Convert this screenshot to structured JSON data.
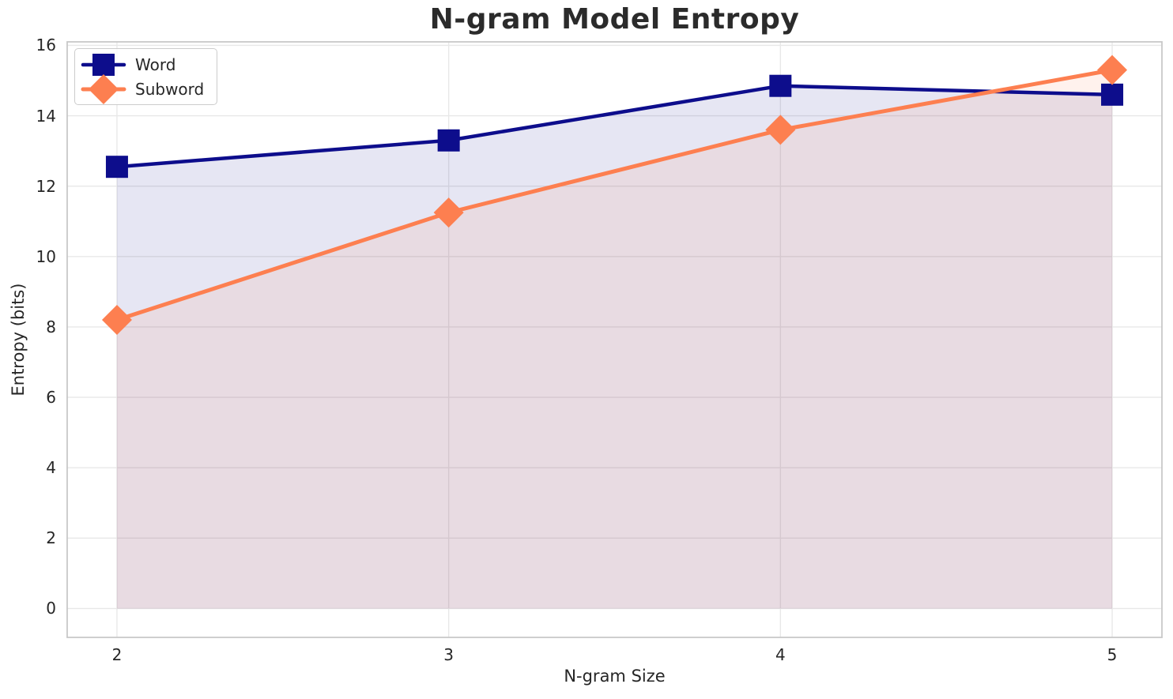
{
  "chart_data": {
    "type": "line",
    "title": "N-gram Model Entropy",
    "xlabel": "N-gram Size",
    "ylabel": "Entropy (bits)",
    "x": [
      2,
      3,
      4,
      5
    ],
    "series": [
      {
        "name": "Word",
        "values": [
          12.55,
          13.3,
          14.85,
          14.6
        ],
        "color": "#0d0d8c",
        "marker": "square",
        "marker_size": 28,
        "line_width": 4.5,
        "fill_to_zero": true,
        "fill_opacity": 0.1
      },
      {
        "name": "Subword",
        "values": [
          8.2,
          11.25,
          13.6,
          15.3
        ],
        "color": "#fd7f50",
        "marker": "diamond",
        "marker_size": 38,
        "line_width": 5,
        "fill_to_zero": true,
        "fill_opacity": 0.1
      }
    ],
    "x_ticks": [
      2,
      3,
      4,
      5
    ],
    "y_ticks": [
      0,
      2,
      4,
      6,
      8,
      10,
      12,
      14,
      16
    ],
    "xlim": [
      1.85,
      5.15
    ],
    "ylim": [
      -0.82,
      16.1
    ],
    "grid": true,
    "legend_position": "upper left"
  },
  "styles": {
    "grid_color": "#e8e8e8",
    "spine_color": "#c8c8c8",
    "text_color": "#262626",
    "title_color": "#2b2b2b",
    "background": "#ffffff",
    "legend_border": "#cccccc"
  }
}
